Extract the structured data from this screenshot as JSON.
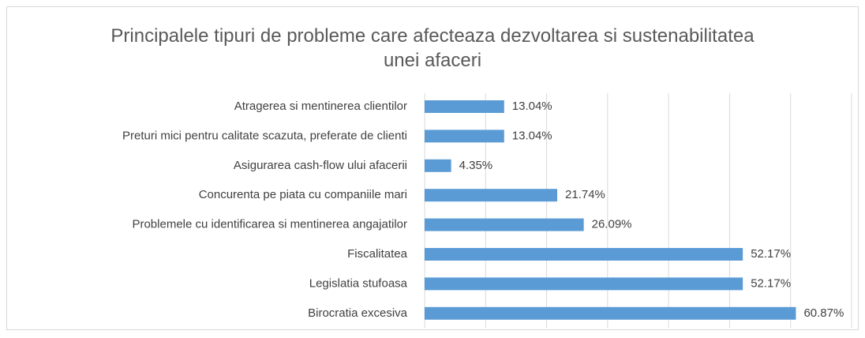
{
  "chart_data": {
    "type": "bar",
    "orientation": "horizontal",
    "title": "Principalele tipuri de probleme care afecteaza dezvoltarea si sustenabilitatea unei afaceri",
    "categories": [
      "Atragerea si mentinerea clientilor",
      "Preturi mici pentru calitate scazuta, preferate de clienti",
      "Asigurarea cash-flow ului afacerii",
      "Concurenta pe piata cu companiile mari",
      "Problemele cu identificarea si mentinerea angajatilor",
      "Fiscalitatea",
      "Legislatia stufoasa",
      "Birocratia excesiva"
    ],
    "values": [
      13.04,
      13.04,
      4.35,
      21.74,
      26.09,
      52.17,
      52.17,
      60.87
    ],
    "value_labels": [
      "13.04%",
      "13.04%",
      "4.35%",
      "21.74%",
      "26.09%",
      "52.17%",
      "52.17%",
      "60.87%"
    ],
    "color": "#5b9bd5",
    "xlim": [
      0,
      70
    ],
    "xticks": [
      0,
      10,
      20,
      30,
      40,
      50,
      60,
      70
    ],
    "grid": true
  }
}
